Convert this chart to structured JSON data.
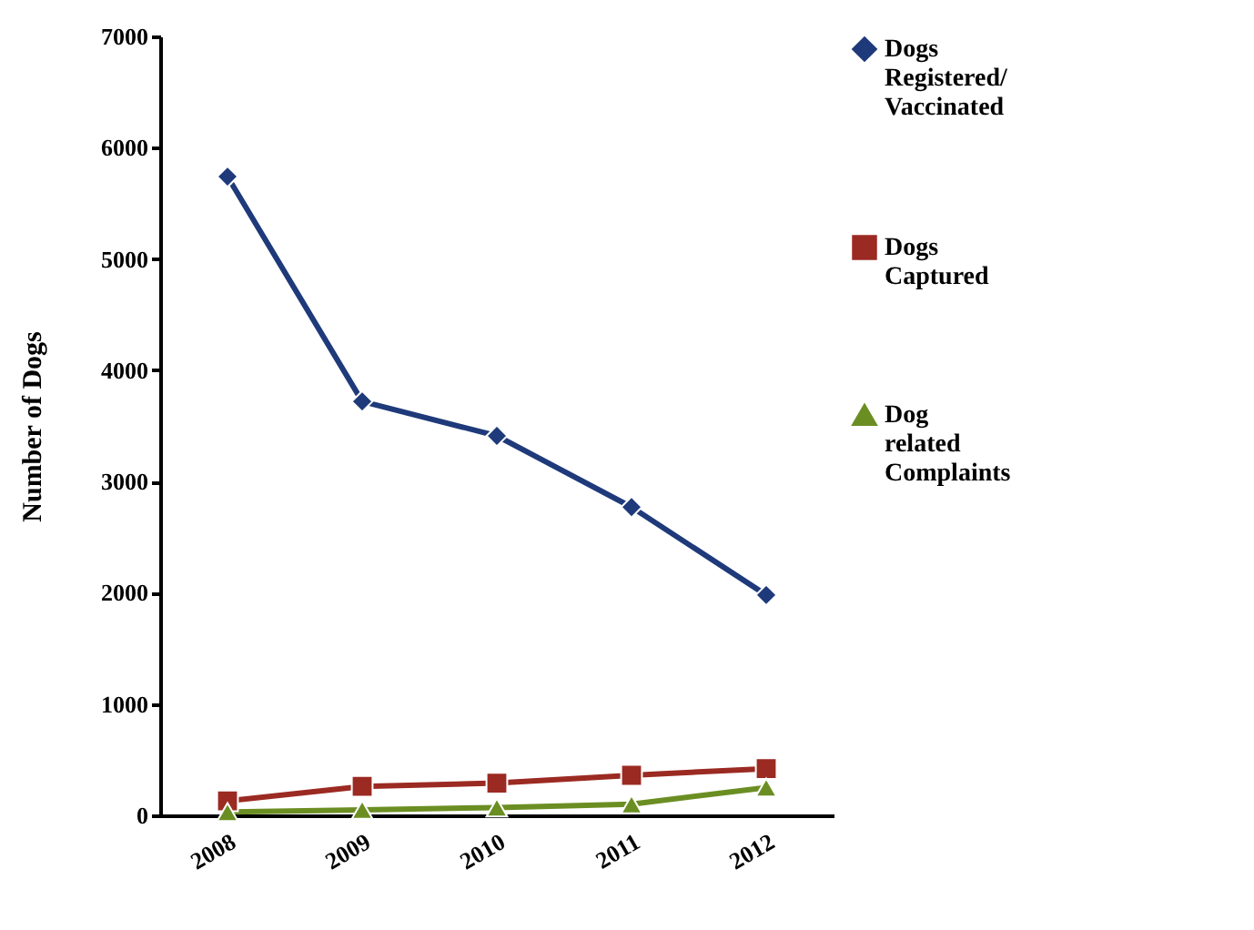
{
  "chart_data": {
    "type": "line",
    "ylabel": "Number of Dogs",
    "categories": [
      "2008",
      "2009",
      "2010",
      "2011",
      "2012"
    ],
    "ylim": [
      0,
      7000
    ],
    "yticks": [
      0,
      1000,
      2000,
      3000,
      4000,
      5000,
      6000,
      7000
    ],
    "grid": false,
    "legend": "right",
    "line_style": "solid",
    "series": [
      {
        "name": "Dogs Registered/ Vaccinated",
        "color": "#1f3a7a",
        "marker": "diamond",
        "values": [
          5740,
          3720,
          3410,
          2770,
          1980
        ]
      },
      {
        "name": "Dogs Captured",
        "color": "#9b2a22",
        "marker": "square",
        "values": [
          130,
          260,
          290,
          360,
          420
        ]
      },
      {
        "name": "Dog related Complaints",
        "color": "#6b8e23",
        "marker": "triangle",
        "values": [
          30,
          50,
          70,
          100,
          250
        ]
      }
    ]
  }
}
